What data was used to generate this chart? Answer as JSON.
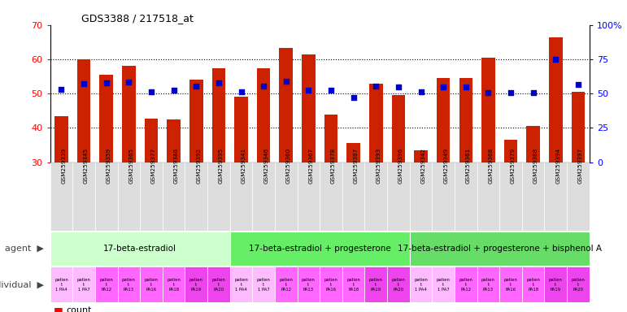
{
  "title": "GDS3388 / 217518_at",
  "gsm_ids": [
    "GSM259339",
    "GSM259345",
    "GSM259359",
    "GSM259365",
    "GSM259377",
    "GSM259386",
    "GSM259392",
    "GSM259395",
    "GSM259341",
    "GSM259346",
    "GSM259360",
    "GSM259367",
    "GSM259378",
    "GSM259387",
    "GSM259393",
    "GSM259396",
    "GSM259342",
    "GSM259349",
    "GSM259361",
    "GSM259368",
    "GSM259379",
    "GSM259388",
    "GSM259394",
    "GSM259397"
  ],
  "counts": [
    43.5,
    60.0,
    55.5,
    58.0,
    42.8,
    42.5,
    54.0,
    57.5,
    49.0,
    57.5,
    63.2,
    61.5,
    44.0,
    35.5,
    53.0,
    49.5,
    33.5,
    54.5,
    54.5,
    60.5,
    36.5,
    40.5,
    66.5,
    50.5
  ],
  "percentile_ranks": [
    53.0,
    57.0,
    58.0,
    58.5,
    51.5,
    52.5,
    55.5,
    58.0,
    51.5,
    55.5,
    59.0,
    52.5,
    52.5,
    47.0,
    55.5,
    55.0,
    51.5,
    55.0,
    55.0,
    51.0,
    51.0,
    50.5,
    75.0,
    56.5
  ],
  "bar_color": "#cc2200",
  "dot_color": "#0000cc",
  "ylim_left": [
    30,
    70
  ],
  "ylim_right": [
    0,
    100
  ],
  "yticks_left": [
    30,
    40,
    50,
    60,
    70
  ],
  "yticks_right": [
    0,
    25,
    50,
    75,
    100
  ],
  "ytick_right_labels": [
    "0",
    "25",
    "50",
    "75",
    "100%"
  ],
  "agent_groups": [
    {
      "label": "17-beta-estradiol",
      "start": 0,
      "end": 7,
      "color": "#ccffcc"
    },
    {
      "label": "17-beta-estradiol + progesterone",
      "start": 8,
      "end": 15,
      "color": "#66ee66"
    },
    {
      "label": "17-beta-estradiol + progesterone + bisphenol A",
      "start": 16,
      "end": 23,
      "color": "#66dd66"
    }
  ],
  "indiv_labels": [
    "patien\nt\n1 PA4",
    "patien\nt\n1 PA7",
    "patien\nt\nPA12",
    "patien\nt\nPA13",
    "patien\nt\nPA16",
    "patien\nt\nPA18",
    "patien\nt\nPA19",
    "patien\nt\nPA20"
  ],
  "indiv_colors": [
    "#ffbbff",
    "#ffbbff",
    "#ff66ff",
    "#ff66ff",
    "#ff66ff",
    "#ff66ff",
    "#ee44ee",
    "#ee44ee"
  ]
}
